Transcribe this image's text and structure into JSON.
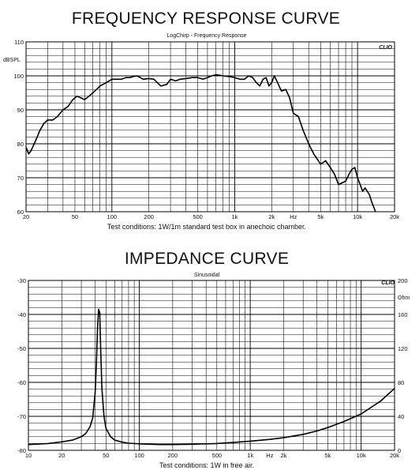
{
  "chart_data": [
    {
      "type": "line",
      "title": "FREQUENCY RESPONSE  CURVE",
      "subtitle": "LogChirp - Frequency Response",
      "brand": "CLIO",
      "ylabel": "dBSPL",
      "x_scale": "log",
      "xlim": [
        20,
        20000
      ],
      "ylim": [
        60,
        110
      ],
      "grid": true,
      "x_ticks": [
        {
          "v": 20,
          "label": "20"
        },
        {
          "v": 50,
          "label": "50"
        },
        {
          "v": 100,
          "label": "100"
        },
        {
          "v": 200,
          "label": "200"
        },
        {
          "v": 500,
          "label": "500"
        },
        {
          "v": 1000,
          "label": "1k"
        },
        {
          "v": 2000,
          "label": "2k"
        },
        {
          "v": 3000,
          "label": "Hz"
        },
        {
          "v": 5000,
          "label": "5k"
        },
        {
          "v": 10000,
          "label": "10k"
        },
        {
          "v": 20000,
          "label": "20k"
        }
      ],
      "y_ticks": [
        {
          "v": 60,
          "label": "60"
        },
        {
          "v": 70,
          "label": "70"
        },
        {
          "v": 80,
          "label": "80"
        },
        {
          "v": 90,
          "label": "90"
        },
        {
          "v": 100,
          "label": "100"
        },
        {
          "v": 110,
          "label": "110"
        }
      ],
      "caption": "Test conditions: 1W/1m standard test box in anechoic chamber.",
      "series": [
        {
          "x": [
            20,
            21,
            22,
            24,
            26,
            28,
            30,
            33,
            36,
            40,
            44,
            48,
            52,
            56,
            60,
            65,
            70,
            75,
            80,
            90,
            100,
            110,
            120,
            130,
            140,
            150,
            160,
            170,
            180,
            200,
            220,
            250,
            280,
            300,
            330,
            360,
            400,
            450,
            500,
            550,
            600,
            650,
            700,
            750,
            800,
            900,
            1000,
            1100,
            1200,
            1300,
            1400,
            1500,
            1600,
            1700,
            1800,
            1900,
            2000,
            2100,
            2200,
            2400,
            2600,
            2800,
            3000,
            3300,
            3600,
            4000,
            4400,
            4800,
            5000,
            5500,
            6000,
            6500,
            7000,
            7500,
            8000,
            8500,
            9000,
            9500,
            10000,
            10500,
            11000,
            11500,
            12000,
            12500,
            13000,
            13500,
            14000
          ],
          "y": [
            79,
            77,
            78,
            81,
            84,
            86,
            87,
            87,
            88,
            90,
            91,
            93,
            94,
            93.5,
            93,
            94,
            95,
            96,
            97,
            98,
            99,
            99,
            99,
            99.5,
            99.5,
            99.8,
            100,
            99.5,
            99,
            99.2,
            99,
            97,
            97.5,
            99,
            98.5,
            99,
            99.2,
            99.5,
            99.5,
            99,
            99.5,
            100,
            100.3,
            100.2,
            100,
            99.8,
            99.5,
            99,
            99,
            100,
            99.5,
            98,
            97,
            99,
            99.5,
            97,
            98,
            100,
            98.5,
            95.5,
            96,
            93.5,
            89,
            88,
            84,
            80,
            77,
            75,
            74,
            75,
            73,
            71,
            68,
            68.5,
            69,
            71,
            72.5,
            73,
            70,
            68,
            66,
            67,
            66,
            65,
            63,
            61.5,
            60
          ]
        }
      ]
    },
    {
      "type": "line",
      "title": "IMPEDANCE CURVE",
      "subtitle": "Sinusoidal",
      "brand": "CLIO",
      "ylabel_right": "Ohm",
      "x_scale": "log",
      "xlim": [
        10,
        20000
      ],
      "ylim": [
        -80,
        -30
      ],
      "ylim_right": [
        0,
        200
      ],
      "grid": true,
      "x_ticks": [
        {
          "v": 10,
          "label": "10"
        },
        {
          "v": 20,
          "label": "20"
        },
        {
          "v": 50,
          "label": "50"
        },
        {
          "v": 100,
          "label": "100"
        },
        {
          "v": 200,
          "label": "200"
        },
        {
          "v": 500,
          "label": "500"
        },
        {
          "v": 1000,
          "label": "1k"
        },
        {
          "v": 1500,
          "label": "Hz"
        },
        {
          "v": 2000,
          "label": "2k"
        },
        {
          "v": 5000,
          "label": "5k"
        },
        {
          "v": 10000,
          "label": "10k"
        },
        {
          "v": 20000,
          "label": "20k"
        }
      ],
      "y_ticks": [
        {
          "v": -30,
          "label": "-30"
        },
        {
          "v": -40,
          "label": "-40"
        },
        {
          "v": -50,
          "label": "-50"
        },
        {
          "v": -60,
          "label": "-60"
        },
        {
          "v": -70,
          "label": "-70"
        },
        {
          "v": -80,
          "label": "-80"
        }
      ],
      "y_ticks_right": [
        {
          "v": 200,
          "label": "200"
        },
        {
          "v": 160,
          "label": "160"
        },
        {
          "v": 120,
          "label": "120"
        },
        {
          "v": 80,
          "label": "80"
        },
        {
          "v": 40,
          "label": "40"
        },
        {
          "v": 0,
          "label": "0"
        }
      ],
      "caption": "Test conditions: 1W in free air.",
      "series": [
        {
          "x": [
            10,
            15,
            20,
            25,
            30,
            33,
            36,
            38,
            40,
            41,
            42,
            43,
            44,
            45,
            46,
            48,
            50,
            55,
            60,
            70,
            80,
            100,
            150,
            200,
            300,
            400,
            500,
            700,
            1000,
            1500,
            2000,
            3000,
            4000,
            5000,
            7000,
            10000,
            15000,
            20000
          ],
          "y": [
            -78.3,
            -78,
            -77.5,
            -77,
            -76,
            -75,
            -73,
            -70.5,
            -63,
            -55,
            -44,
            -38.5,
            -39.5,
            -52,
            -62,
            -70,
            -73.5,
            -76,
            -77,
            -77.6,
            -77.9,
            -78.1,
            -78.3,
            -78.3,
            -78.2,
            -78.1,
            -78,
            -77.7,
            -77.3,
            -76.8,
            -76.3,
            -75.3,
            -74.3,
            -73.3,
            -71.5,
            -69.3,
            -65.5,
            -61.8
          ]
        }
      ]
    }
  ]
}
